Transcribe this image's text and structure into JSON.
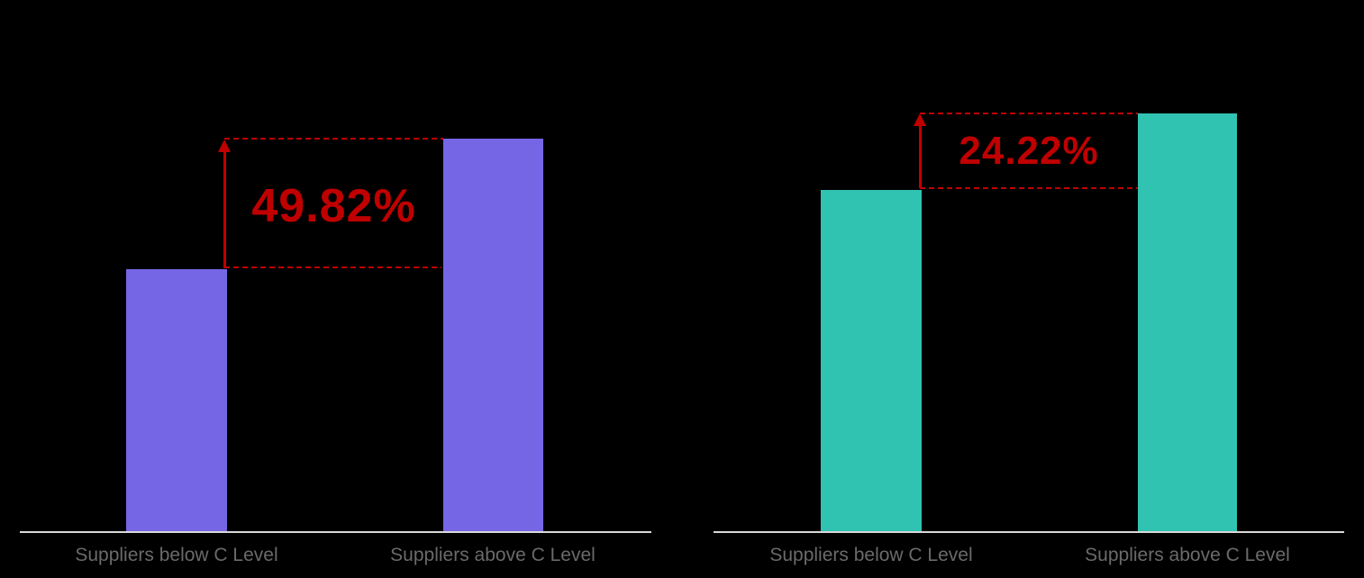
{
  "background_color": "#000000",
  "accent_color": "#C00000",
  "chart_data": [
    {
      "type": "bar",
      "title": "",
      "categories": [
        "Suppliers below C Level",
        "Suppliers above C Level"
      ],
      "values": [
        100,
        149.82
      ],
      "annotation": {
        "text": "49.82%"
      },
      "bar_color": "#7566E5",
      "annotation_color": "#C00000",
      "axis_color": "#D9D9D9",
      "label_color": "#6A6A6A",
      "legend": "none",
      "grid": "off"
    },
    {
      "type": "bar",
      "title": "",
      "categories": [
        "Suppliers below C Level",
        "Suppliers above C Level"
      ],
      "values": [
        100,
        124.22
      ],
      "annotation": {
        "text": "24.22%"
      },
      "bar_color": "#31C3B2",
      "annotation_color": "#C00000",
      "axis_color": "#D9D9D9",
      "label_color": "#6A6A6A",
      "legend": "none",
      "grid": "off"
    }
  ]
}
